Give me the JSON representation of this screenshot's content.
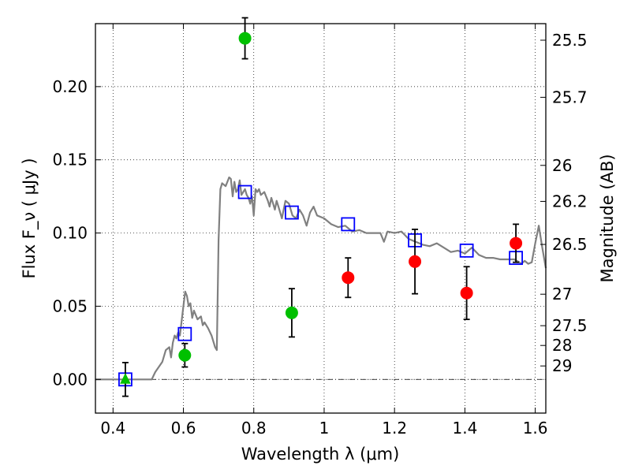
{
  "chart_data": {
    "type": "scatter",
    "xlabel": "Wavelength  λ (μm)",
    "ylabel": "Flux  F_ν  ( μJy )",
    "ylabel_right": "Magnitude (AB)",
    "xlim": [
      0.35,
      1.63
    ],
    "ylim": [
      -0.023,
      0.243
    ],
    "x_ticks": [
      0.4,
      0.6,
      0.8,
      1.0,
      1.2,
      1.4,
      1.6
    ],
    "x_tick_labels": [
      "0.4",
      "0.6",
      "0.8",
      "1",
      "1.2",
      "1.4",
      "1.6"
    ],
    "y_ticks": [
      0.0,
      0.05,
      0.1,
      0.15,
      0.2
    ],
    "y_tick_labels": [
      "0.00",
      "0.05",
      "0.10",
      "0.15",
      "0.20"
    ],
    "right_ticks": [
      {
        "label": "25.5",
        "flux": 0.2317
      },
      {
        "label": "25.7",
        "flux": 0.1927
      },
      {
        "label": "26",
        "flux": 0.1462
      },
      {
        "label": "26.2",
        "flux": 0.1216
      },
      {
        "label": "26.5",
        "flux": 0.0922
      },
      {
        "label": "27",
        "flux": 0.0582
      },
      {
        "label": "27.5",
        "flux": 0.0367
      },
      {
        "label": "28",
        "flux": 0.0232
      },
      {
        "label": "29",
        "flux": 0.0092
      }
    ],
    "grid": true,
    "series": [
      {
        "name": "",
        "kind": "line",
        "color": "#808080",
        "x": [
          0.35,
          0.51,
          0.52,
          0.54,
          0.55,
          0.56,
          0.565,
          0.57,
          0.575,
          0.58,
          0.585,
          0.59,
          0.595,
          0.6,
          0.605,
          0.61,
          0.615,
          0.62,
          0.625,
          0.63,
          0.64,
          0.65,
          0.655,
          0.66,
          0.67,
          0.68,
          0.69,
          0.695,
          0.7,
          0.705,
          0.71,
          0.715,
          0.72,
          0.725,
          0.73,
          0.735,
          0.74,
          0.745,
          0.75,
          0.755,
          0.76,
          0.765,
          0.77,
          0.775,
          0.78,
          0.785,
          0.79,
          0.795,
          0.8,
          0.805,
          0.81,
          0.815,
          0.82,
          0.83,
          0.84,
          0.845,
          0.85,
          0.855,
          0.86,
          0.865,
          0.87,
          0.88,
          0.89,
          0.9,
          0.91,
          0.92,
          0.93,
          0.94,
          0.95,
          0.96,
          0.97,
          0.98,
          1.0,
          1.02,
          1.04,
          1.06,
          1.08,
          1.1,
          1.12,
          1.14,
          1.16,
          1.17,
          1.18,
          1.2,
          1.22,
          1.24,
          1.26,
          1.28,
          1.3,
          1.32,
          1.34,
          1.36,
          1.38,
          1.4,
          1.42,
          1.44,
          1.46,
          1.48,
          1.5,
          1.52,
          1.54,
          1.555,
          1.56,
          1.57,
          1.58,
          1.59,
          1.6,
          1.61,
          1.62,
          1.63
        ],
        "y": [
          0.0,
          0.0,
          0.005,
          0.012,
          0.02,
          0.022,
          0.015,
          0.025,
          0.03,
          0.028,
          0.032,
          0.03,
          0.04,
          0.05,
          0.06,
          0.057,
          0.05,
          0.052,
          0.042,
          0.047,
          0.041,
          0.043,
          0.037,
          0.039,
          0.035,
          0.03,
          0.022,
          0.02,
          0.095,
          0.13,
          0.134,
          0.133,
          0.132,
          0.135,
          0.138,
          0.137,
          0.125,
          0.135,
          0.128,
          0.13,
          0.136,
          0.126,
          0.128,
          0.13,
          0.126,
          0.124,
          0.12,
          0.125,
          0.112,
          0.13,
          0.128,
          0.13,
          0.126,
          0.128,
          0.122,
          0.118,
          0.124,
          0.12,
          0.116,
          0.122,
          0.118,
          0.11,
          0.122,
          0.12,
          0.112,
          0.11,
          0.116,
          0.112,
          0.105,
          0.114,
          0.118,
          0.112,
          0.11,
          0.106,
          0.104,
          0.105,
          0.101,
          0.102,
          0.1,
          0.1,
          0.1,
          0.094,
          0.101,
          0.1,
          0.101,
          0.096,
          0.094,
          0.092,
          0.091,
          0.093,
          0.09,
          0.087,
          0.088,
          0.086,
          0.09,
          0.085,
          0.083,
          0.083,
          0.082,
          0.082,
          0.082,
          0.08,
          0.079,
          0.081,
          0.079,
          0.08,
          0.093,
          0.105,
          0.09,
          0.076
        ]
      },
      {
        "name": "",
        "kind": "markers",
        "marker": "square",
        "color": "#0000ff",
        "x": [
          0.435,
          0.604,
          0.775,
          0.908,
          1.068,
          1.258,
          1.405,
          1.545
        ],
        "y": [
          0.0,
          0.031,
          0.128,
          0.114,
          0.106,
          0.095,
          0.088,
          0.083
        ]
      },
      {
        "name": "",
        "kind": "markers",
        "marker": "circle",
        "color": "#00c000",
        "x": [
          0.604,
          0.775,
          0.908
        ],
        "y": [
          0.0165,
          0.233,
          0.0455
        ],
        "yerr": [
          0.008,
          0.014,
          0.0165
        ]
      },
      {
        "name": "",
        "kind": "markers",
        "marker": "circle",
        "color": "#ff0000",
        "x": [
          1.068,
          1.258,
          1.405,
          1.545
        ],
        "y": [
          0.0695,
          0.0805,
          0.059,
          0.093
        ],
        "yerr": [
          0.0135,
          0.022,
          0.018,
          0.013
        ]
      },
      {
        "name": "",
        "kind": "markers",
        "marker": "triangle",
        "color": "#00c000",
        "x": [
          0.435
        ],
        "y": [
          0.0
        ],
        "yerr": [
          0.0115
        ]
      }
    ],
    "zero_line": {
      "y": 0.0,
      "style": "dash-dot",
      "color": "#000000"
    }
  }
}
